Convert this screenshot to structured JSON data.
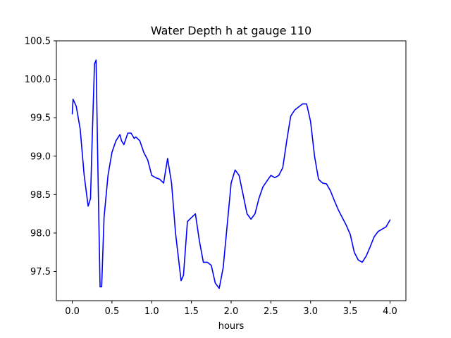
{
  "chart_data": {
    "type": "line",
    "title": "Water Depth h at gauge 110",
    "xlabel": "hours",
    "ylabel": "",
    "xlim": [
      -0.2,
      4.2
    ],
    "ylim": [
      97.12,
      100.5
    ],
    "grid": false,
    "x_ticks": [
      0.0,
      0.5,
      1.0,
      1.5,
      2.0,
      2.5,
      3.0,
      3.5,
      4.0
    ],
    "x_tick_labels": [
      "0.0",
      "0.5",
      "1.0",
      "1.5",
      "2.0",
      "2.5",
      "3.0",
      "3.5",
      "4.0"
    ],
    "y_ticks": [
      97.5,
      98.0,
      98.5,
      99.0,
      99.5,
      100.0,
      100.5
    ],
    "y_tick_labels": [
      "97.5",
      "98.0",
      "98.5",
      "99.0",
      "99.5",
      "100.0",
      "100.5"
    ],
    "series": [
      {
        "color": "#0000ff",
        "x": [
          0.0,
          0.01,
          0.05,
          0.1,
          0.15,
          0.2,
          0.23,
          0.25,
          0.28,
          0.3,
          0.32,
          0.35,
          0.37,
          0.4,
          0.45,
          0.5,
          0.55,
          0.6,
          0.62,
          0.65,
          0.7,
          0.74,
          0.78,
          0.8,
          0.85,
          0.9,
          0.95,
          1.0,
          1.05,
          1.1,
          1.15,
          1.2,
          1.25,
          1.3,
          1.37,
          1.4,
          1.45,
          1.5,
          1.55,
          1.6,
          1.65,
          1.7,
          1.75,
          1.8,
          1.85,
          1.9,
          1.95,
          2.0,
          2.05,
          2.1,
          2.15,
          2.2,
          2.25,
          2.3,
          2.35,
          2.4,
          2.5,
          2.55,
          2.6,
          2.65,
          2.7,
          2.75,
          2.8,
          2.85,
          2.9,
          2.95,
          3.0,
          3.05,
          3.1,
          3.15,
          3.2,
          3.25,
          3.3,
          3.35,
          3.4,
          3.45,
          3.5,
          3.55,
          3.6,
          3.65,
          3.7,
          3.75,
          3.8,
          3.85,
          3.9,
          3.95,
          4.0
        ],
        "values": [
          99.55,
          99.74,
          99.65,
          99.35,
          98.75,
          98.35,
          98.45,
          99.2,
          100.2,
          100.25,
          99.0,
          97.3,
          97.3,
          98.2,
          98.75,
          99.05,
          99.2,
          99.28,
          99.2,
          99.15,
          99.3,
          99.3,
          99.23,
          99.25,
          99.2,
          99.05,
          98.95,
          98.75,
          98.72,
          98.7,
          98.65,
          98.97,
          98.65,
          98.0,
          97.38,
          97.45,
          98.15,
          98.2,
          98.25,
          97.9,
          97.62,
          97.62,
          97.58,
          97.35,
          97.28,
          97.55,
          98.1,
          98.65,
          98.82,
          98.75,
          98.5,
          98.25,
          98.18,
          98.25,
          98.45,
          98.6,
          98.75,
          98.72,
          98.75,
          98.85,
          99.2,
          99.52,
          99.6,
          99.64,
          99.68,
          99.68,
          99.45,
          99.0,
          98.7,
          98.65,
          98.64,
          98.55,
          98.42,
          98.3,
          98.2,
          98.1,
          97.98,
          97.75,
          97.65,
          97.62,
          97.7,
          97.82,
          97.95,
          98.02,
          98.05,
          98.08,
          98.17
        ]
      }
    ]
  }
}
